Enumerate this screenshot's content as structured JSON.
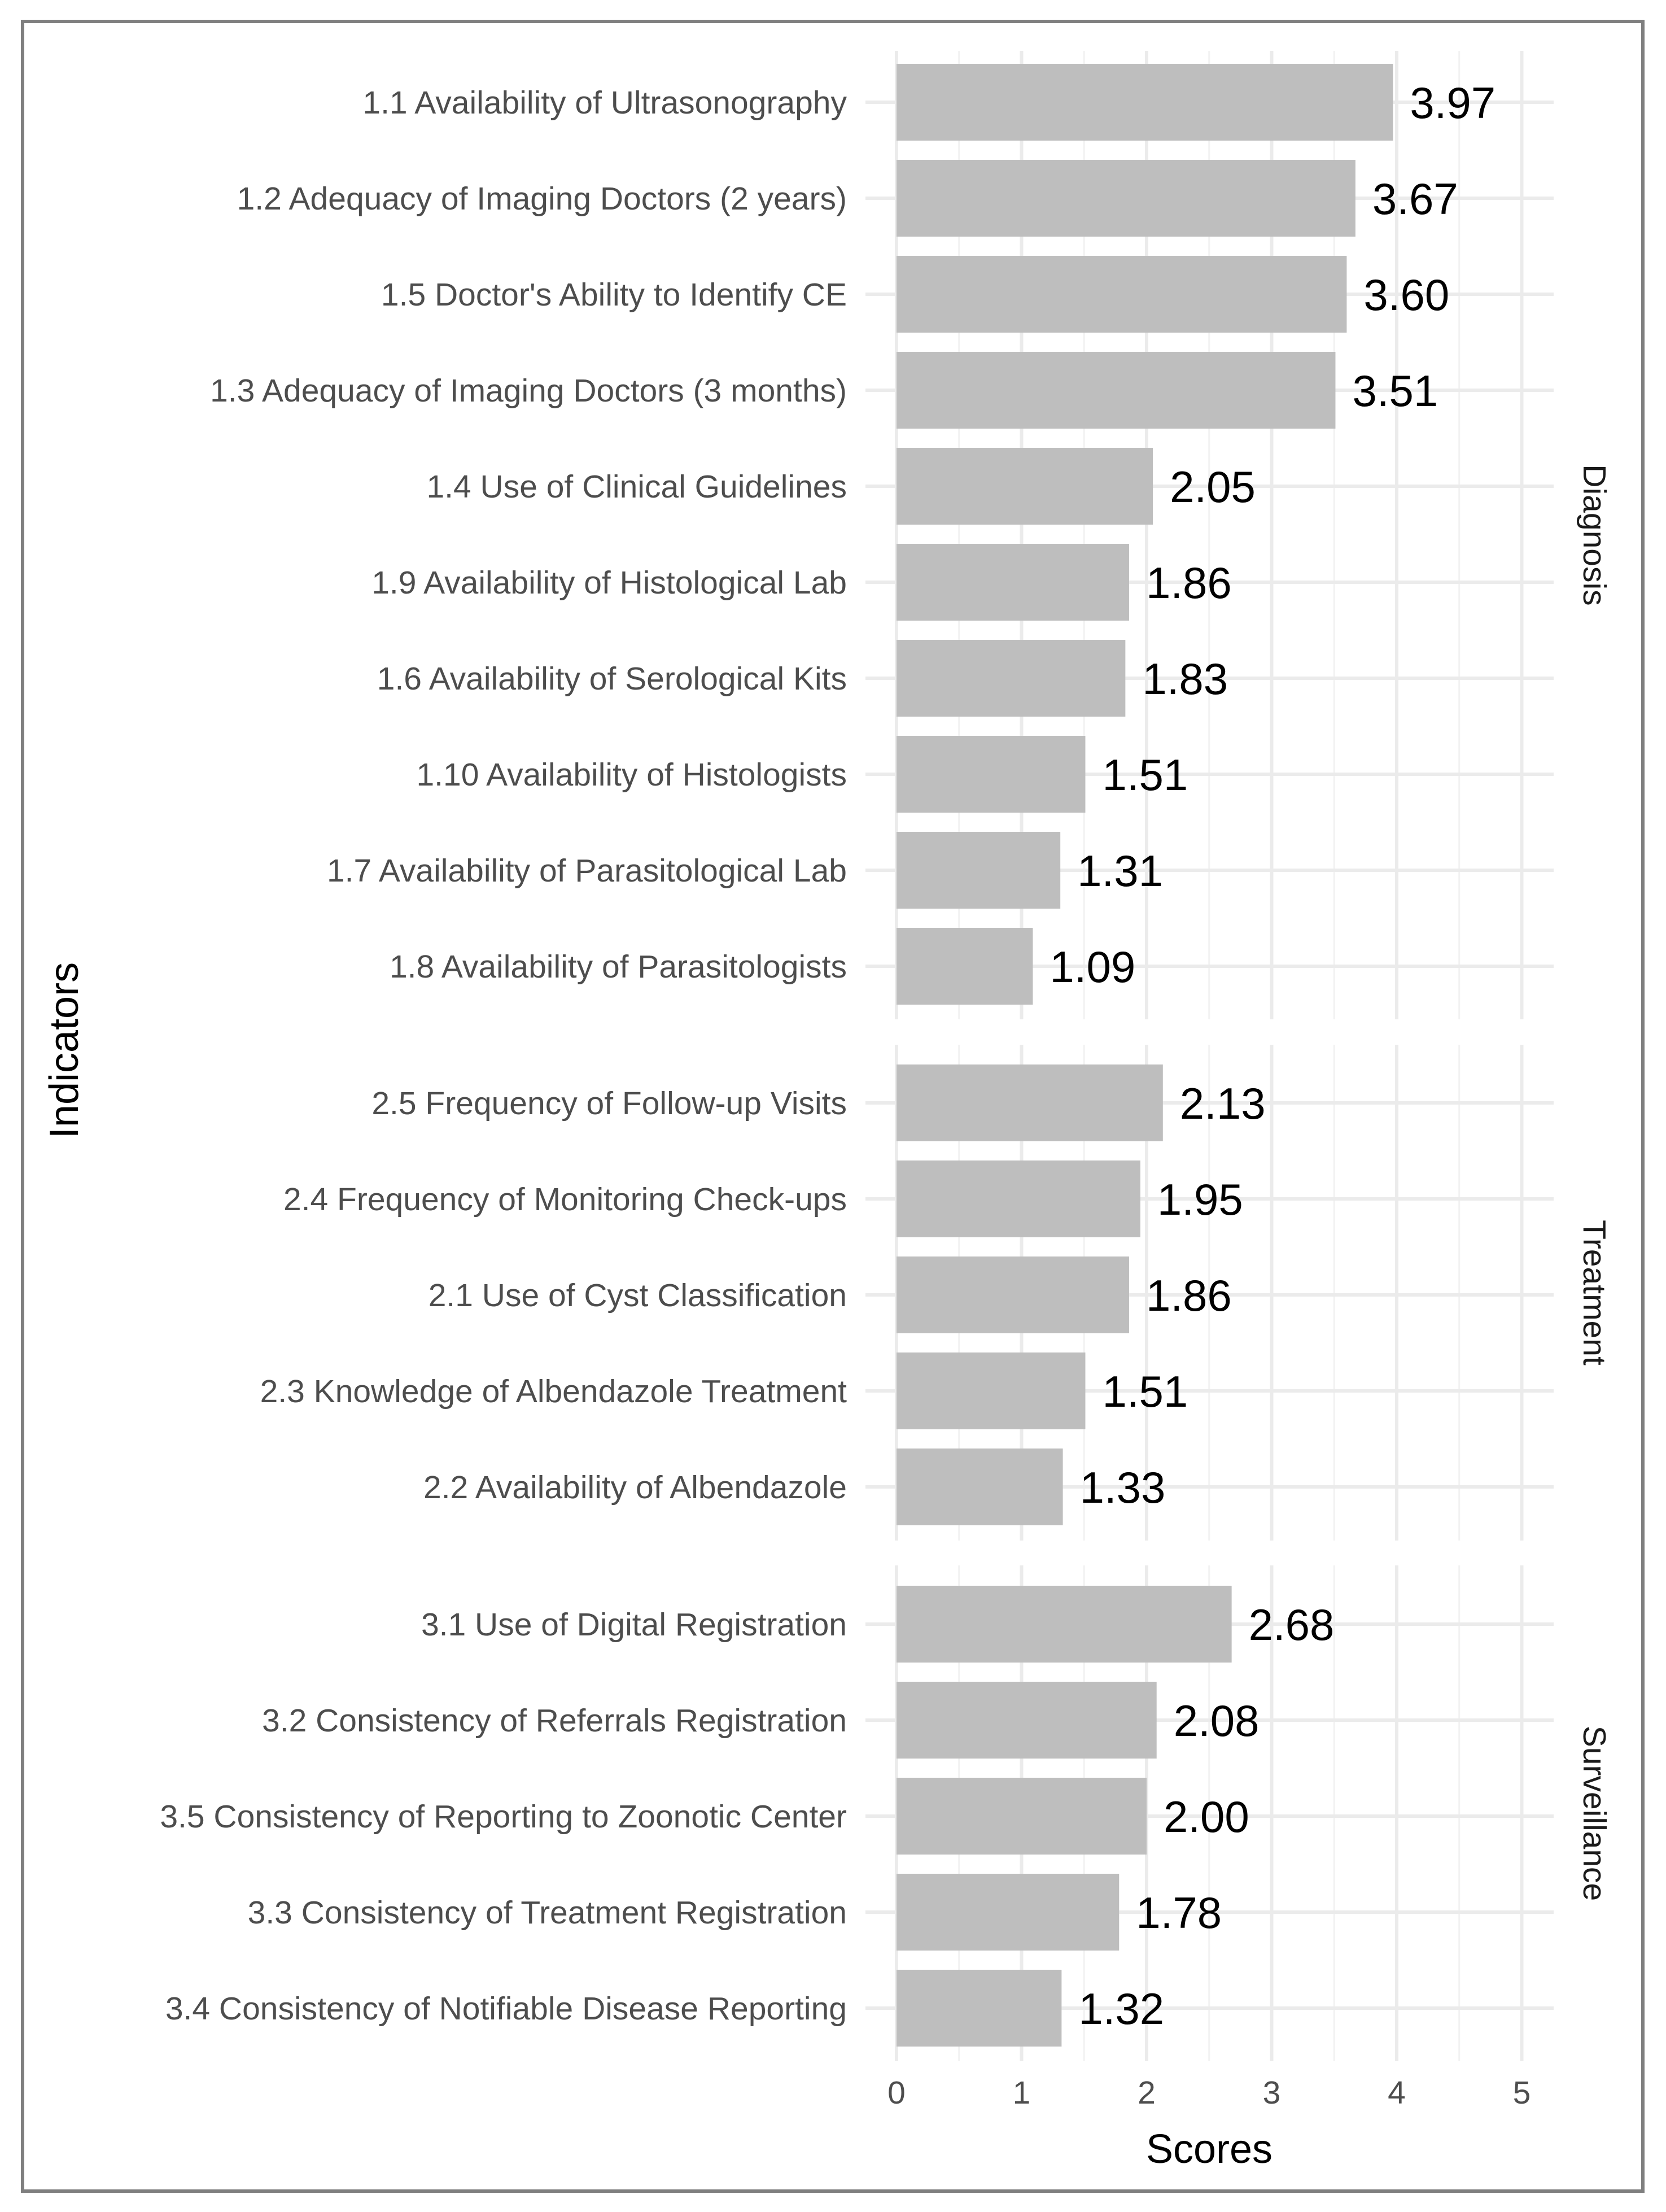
{
  "chart_data": {
    "type": "bar",
    "orientation": "horizontal",
    "xlabel": "Scores",
    "ylabel": "Indicators",
    "xlim": [
      0,
      5
    ],
    "x_ticks": [
      "0",
      "1",
      "2",
      "3",
      "4",
      "5"
    ],
    "grid": true,
    "bar_color": "#bebebe",
    "panels": [
      {
        "name": "Diagnosis",
        "categories": [
          "1.1 Availability of Ultrasonography",
          "1.2 Adequacy of Imaging Doctors (2 years)",
          "1.5 Doctor's Ability to Identify CE",
          "1.3 Adequacy of Imaging Doctors (3 months)",
          "1.4 Use of Clinical Guidelines",
          "1.9 Availability of Histological Lab",
          "1.6 Availability of Serological Kits",
          "1.10 Availability of Histologists",
          "1.7 Availability of Parasitological Lab",
          "1.8 Availability of Parasitologists"
        ],
        "values": [
          3.97,
          3.67,
          3.6,
          3.51,
          2.05,
          1.86,
          1.83,
          1.51,
          1.31,
          1.09
        ],
        "labels": [
          "3.97",
          "3.67",
          "3.60",
          "3.51",
          "2.05",
          "1.86",
          "1.83",
          "1.51",
          "1.31",
          "1.09"
        ]
      },
      {
        "name": "Treatment",
        "categories": [
          "2.5 Frequency of Follow-up Visits",
          "2.4 Frequency of Monitoring Check-ups",
          "2.1 Use of Cyst Classification",
          "2.3 Knowledge of Albendazole Treatment",
          "2.2 Availability of Albendazole"
        ],
        "values": [
          2.13,
          1.95,
          1.86,
          1.51,
          1.33
        ],
        "labels": [
          "2.13",
          "1.95",
          "1.86",
          "1.51",
          "1.33"
        ]
      },
      {
        "name": "Surveillance",
        "categories": [
          "3.1 Use of Digital Registration",
          "3.2 Consistency of Referrals Registration",
          "3.5 Consistency of Reporting to Zoonotic Center",
          "3.3 Consistency of Treatment Registration",
          "3.4 Consistency of Notifiable Disease Reporting"
        ],
        "values": [
          2.68,
          2.08,
          2.0,
          1.78,
          1.32
        ],
        "labels": [
          "2.68",
          "2.08",
          "2.00",
          "1.78",
          "1.32"
        ]
      }
    ]
  }
}
